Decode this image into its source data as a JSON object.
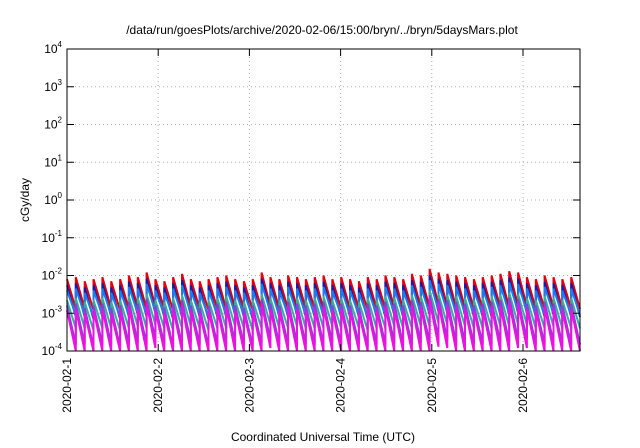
{
  "chart_data": {
    "type": "line",
    "title": "/data/run/goesPlots/archive/2020-02-06/15:00/bryn/../bryn/5daysMars.plot",
    "xlabel": "Coordinated Universal Time (UTC)",
    "ylabel": "cGy/day",
    "y_scale": "log",
    "ylim": [
      0.0001,
      10000
    ],
    "xlim": [
      "2020-02-01",
      "2020-02-06 15:00"
    ],
    "y_ticks": [
      {
        "base": "10",
        "exp": "-4",
        "value": 0.0001
      },
      {
        "base": "10",
        "exp": "-3",
        "value": 0.001
      },
      {
        "base": "10",
        "exp": "-2",
        "value": 0.01
      },
      {
        "base": "10",
        "exp": "-1",
        "value": 0.1
      },
      {
        "base": "10",
        "exp": "0",
        "value": 1
      },
      {
        "base": "10",
        "exp": "1",
        "value": 10
      },
      {
        "base": "10",
        "exp": "2",
        "value": 100
      },
      {
        "base": "10",
        "exp": "3",
        "value": 1000
      },
      {
        "base": "10",
        "exp": "4",
        "value": 10000
      }
    ],
    "x_ticks": [
      "2020-02-1",
      "2020-02-2",
      "2020-02-3",
      "2020-02-4",
      "2020-02-5",
      "2020-02-6"
    ],
    "grid": true,
    "legend": "none",
    "series": [
      {
        "color": "#e0000f",
        "peaks": [
          0.008,
          0.009,
          0.007,
          0.008,
          0.009,
          0.007,
          0.008,
          0.01,
          0.009,
          0.012,
          0.008,
          0.007,
          0.009,
          0.011,
          0.008,
          0.007,
          0.008,
          0.009,
          0.01,
          0.008,
          0.007,
          0.008,
          0.012,
          0.009,
          0.008,
          0.01,
          0.009,
          0.008,
          0.009,
          0.01,
          0.008,
          0.009,
          0.008,
          0.007,
          0.009,
          0.008,
          0.01,
          0.009,
          0.008,
          0.011,
          0.01,
          0.015,
          0.012,
          0.011,
          0.01,
          0.009,
          0.008,
          0.009,
          0.01,
          0.011,
          0.013,
          0.012,
          0.009,
          0.008,
          0.01,
          0.009,
          0.008,
          0.009
        ],
        "troughs": [
          0.0013,
          0.0013,
          0.0012,
          0.0013,
          0.0013,
          0.0012,
          0.0013,
          0.0014,
          0.0013,
          0.0015,
          0.0013,
          0.0012,
          0.0013,
          0.0014,
          0.0013,
          0.0012,
          0.0013,
          0.0013,
          0.0014,
          0.0013,
          0.0012,
          0.0013,
          0.0015,
          0.0013,
          0.0013,
          0.0014,
          0.0013,
          0.0013,
          0.0013,
          0.0014,
          0.0013,
          0.0013,
          0.0013,
          0.0012,
          0.0013,
          0.0013,
          0.0014,
          0.0013,
          0.0013,
          0.0014,
          0.0014,
          0.0017,
          0.0015,
          0.0014,
          0.0014,
          0.0013,
          0.0013,
          0.0013,
          0.0014,
          0.0014,
          0.0016,
          0.0015,
          0.0013,
          0.0013,
          0.0014,
          0.0013,
          0.0013,
          0.0013
        ]
      },
      {
        "color": "#1a1aa8",
        "peaks": [
          0.0055,
          0.0062,
          0.0048,
          0.0055,
          0.0062,
          0.0048,
          0.0055,
          0.0068,
          0.0062,
          0.0082,
          0.0055,
          0.0048,
          0.0062,
          0.0075,
          0.0055,
          0.0048,
          0.0055,
          0.0062,
          0.0068,
          0.0055,
          0.0048,
          0.0055,
          0.0082,
          0.0062,
          0.0055,
          0.0068,
          0.0062,
          0.0055,
          0.0062,
          0.0068,
          0.0055,
          0.0062,
          0.0055,
          0.0048,
          0.0062,
          0.0055,
          0.0068,
          0.0062,
          0.0055,
          0.0075,
          0.0068,
          0.01,
          0.0082,
          0.0075,
          0.0068,
          0.0062,
          0.0055,
          0.0062,
          0.0068,
          0.0075,
          0.0088,
          0.0082,
          0.0062,
          0.0055,
          0.0068,
          0.0062,
          0.0055,
          0.0062
        ],
        "troughs": [
          0.0008,
          0.0008,
          0.0007,
          0.0008,
          0.0008,
          0.0007,
          0.0008,
          0.0009,
          0.0008,
          0.001,
          0.0008,
          0.0007,
          0.0008,
          0.0009,
          0.0008,
          0.0007,
          0.0008,
          0.0008,
          0.0009,
          0.0008,
          0.0007,
          0.0008,
          0.001,
          0.0008,
          0.0008,
          0.0009,
          0.0008,
          0.0008,
          0.0008,
          0.0009,
          0.0008,
          0.0008,
          0.0008,
          0.0007,
          0.0008,
          0.0008,
          0.0009,
          0.0008,
          0.0008,
          0.0009,
          0.0009,
          0.0011,
          0.001,
          0.0009,
          0.0009,
          0.0008,
          0.0008,
          0.0008,
          0.0009,
          0.0009,
          0.001,
          0.001,
          0.0008,
          0.0008,
          0.0009,
          0.0008,
          0.0008,
          0.0008
        ]
      },
      {
        "color": "#1f7be8",
        "peaks": [
          0.004,
          0.0045,
          0.0035,
          0.004,
          0.0045,
          0.0035,
          0.004,
          0.005,
          0.0045,
          0.006,
          0.004,
          0.0035,
          0.0045,
          0.0055,
          0.004,
          0.0035,
          0.004,
          0.0045,
          0.005,
          0.004,
          0.0035,
          0.004,
          0.006,
          0.0045,
          0.004,
          0.005,
          0.0045,
          0.004,
          0.0045,
          0.005,
          0.004,
          0.0045,
          0.004,
          0.0035,
          0.0045,
          0.004,
          0.005,
          0.0045,
          0.004,
          0.0055,
          0.005,
          0.0075,
          0.006,
          0.0055,
          0.005,
          0.0045,
          0.004,
          0.0045,
          0.005,
          0.0055,
          0.0065,
          0.006,
          0.0045,
          0.004,
          0.005,
          0.0045,
          0.004,
          0.0045
        ],
        "troughs": [
          0.0009,
          0.0009,
          0.0008,
          0.0009,
          0.0009,
          0.0008,
          0.0009,
          0.001,
          0.0009,
          0.0011,
          0.0009,
          0.0008,
          0.0009,
          0.001,
          0.0009,
          0.0008,
          0.0009,
          0.0009,
          0.001,
          0.0009,
          0.0008,
          0.0009,
          0.0011,
          0.0009,
          0.0009,
          0.001,
          0.0009,
          0.0009,
          0.0009,
          0.001,
          0.0009,
          0.0009,
          0.0009,
          0.0008,
          0.0009,
          0.0009,
          0.001,
          0.0009,
          0.0009,
          0.001,
          0.001,
          0.0012,
          0.0011,
          0.001,
          0.001,
          0.0009,
          0.0009,
          0.0009,
          0.001,
          0.001,
          0.0011,
          0.0011,
          0.0009,
          0.0009,
          0.001,
          0.0009,
          0.0009,
          0.0009
        ]
      },
      {
        "color": "#2fb0a0",
        "peaks": [
          0.0022,
          0.0025,
          0.002,
          0.0022,
          0.0025,
          0.002,
          0.0022,
          0.0028,
          0.0025,
          0.0032,
          0.0022,
          0.002,
          0.0025,
          0.003,
          0.0022,
          0.002,
          0.0022,
          0.0025,
          0.0028,
          0.0022,
          0.002,
          0.0022,
          0.0032,
          0.0025,
          0.0022,
          0.0028,
          0.0025,
          0.0022,
          0.0025,
          0.0028,
          0.0022,
          0.0025,
          0.0022,
          0.002,
          0.0025,
          0.0022,
          0.0028,
          0.0025,
          0.0022,
          0.003,
          0.0028,
          0.004,
          0.0032,
          0.003,
          0.0028,
          0.0025,
          0.0022,
          0.0025,
          0.0028,
          0.003,
          0.0035,
          0.0032,
          0.0025,
          0.0022,
          0.0028,
          0.0025,
          0.0022,
          0.0025
        ],
        "troughs": [
          0.0004,
          0.0004,
          0.00035,
          0.0004,
          0.0004,
          0.00035,
          0.0004,
          0.00045,
          0.0004,
          0.0005,
          0.0004,
          0.00035,
          0.0004,
          0.00045,
          0.0004,
          0.00035,
          0.0004,
          0.0004,
          0.00045,
          0.0004,
          0.00035,
          0.0004,
          0.0005,
          0.0004,
          0.0004,
          0.00045,
          0.0004,
          0.0004,
          0.0004,
          0.00045,
          0.0004,
          0.0004,
          0.0004,
          0.00035,
          0.0004,
          0.0004,
          0.00045,
          0.0004,
          0.0004,
          0.00045,
          0.00045,
          0.00055,
          0.0005,
          0.00045,
          0.00045,
          0.0004,
          0.0004,
          0.0004,
          0.00045,
          0.00045,
          0.0005,
          0.0005,
          0.0004,
          0.0004,
          0.00045,
          0.0004,
          0.0004,
          0.0004
        ]
      },
      {
        "color": "#8a3fd8",
        "peaks": [
          0.0016,
          0.0018,
          0.0014,
          0.0016,
          0.0018,
          0.0014,
          0.0016,
          0.002,
          0.0018,
          0.0024,
          0.0016,
          0.0014,
          0.0018,
          0.0022,
          0.0016,
          0.0014,
          0.0016,
          0.0018,
          0.002,
          0.0016,
          0.0014,
          0.0016,
          0.0024,
          0.0018,
          0.0016,
          0.002,
          0.0018,
          0.0016,
          0.0018,
          0.002,
          0.0016,
          0.0018,
          0.0016,
          0.0014,
          0.0018,
          0.0016,
          0.002,
          0.0018,
          0.0016,
          0.0022,
          0.002,
          0.003,
          0.0024,
          0.0022,
          0.002,
          0.0018,
          0.0016,
          0.0018,
          0.002,
          0.0022,
          0.0026,
          0.0024,
          0.0018,
          0.0016,
          0.002,
          0.0018,
          0.0016,
          0.0018
        ],
        "troughs": [
          0.00015,
          0.00015,
          0.00013,
          0.00015,
          0.00015,
          0.00013,
          0.00015,
          0.00017,
          0.00015,
          0.0002,
          0.00015,
          0.00013,
          0.00015,
          0.00017,
          0.00015,
          0.00013,
          0.00015,
          0.00015,
          0.00017,
          0.00015,
          0.00013,
          0.00015,
          0.0002,
          0.00015,
          0.00015,
          0.00017,
          0.00015,
          0.00015,
          0.00015,
          0.00017,
          0.00015,
          0.00015,
          0.00015,
          0.00013,
          0.00015,
          0.00015,
          0.00017,
          0.00015,
          0.00015,
          0.00017,
          0.00017,
          0.00022,
          0.0002,
          0.00017,
          0.00017,
          0.00015,
          0.00015,
          0.00015,
          0.00017,
          0.00017,
          0.0002,
          0.0002,
          0.00015,
          0.00015,
          0.00017,
          0.00015,
          0.00015,
          0.00015
        ]
      },
      {
        "color": "#ee10e0",
        "peaks": [
          0.0012,
          0.0013,
          0.001,
          0.0012,
          0.0013,
          0.001,
          0.0012,
          0.0015,
          0.0013,
          0.0018,
          0.0012,
          0.001,
          0.0013,
          0.0016,
          0.0012,
          0.001,
          0.0012,
          0.0013,
          0.0015,
          0.0012,
          0.001,
          0.0012,
          0.0018,
          0.0013,
          0.0012,
          0.0015,
          0.0013,
          0.0012,
          0.0013,
          0.0015,
          0.0012,
          0.0013,
          0.0012,
          0.001,
          0.0013,
          0.0012,
          0.0015,
          0.0013,
          0.0012,
          0.0016,
          0.0015,
          0.0022,
          0.0018,
          0.0016,
          0.0015,
          0.0013,
          0.0012,
          0.0013,
          0.0015,
          0.0016,
          0.0019,
          0.0018,
          0.0013,
          0.0012,
          0.0015,
          0.0013,
          0.0012,
          0.0013
        ],
        "troughs": [
          9e-05,
          9e-05,
          8e-05,
          9e-05,
          9e-05,
          8e-05,
          9e-05,
          0.0001,
          9e-05,
          0.00012,
          9e-05,
          8e-05,
          9e-05,
          0.0001,
          9e-05,
          8e-05,
          9e-05,
          9e-05,
          0.0001,
          9e-05,
          8e-05,
          9e-05,
          0.00012,
          9e-05,
          9e-05,
          0.0001,
          9e-05,
          9e-05,
          9e-05,
          0.0001,
          9e-05,
          9e-05,
          9e-05,
          8e-05,
          9e-05,
          9e-05,
          0.0001,
          9e-05,
          9e-05,
          0.0001,
          0.0001,
          0.00013,
          0.00012,
          0.0001,
          0.0001,
          9e-05,
          9e-05,
          9e-05,
          0.0001,
          0.0001,
          0.00012,
          0.00012,
          9e-05,
          9e-05,
          0.0001,
          9e-05,
          9e-05,
          9e-05
        ]
      }
    ]
  }
}
